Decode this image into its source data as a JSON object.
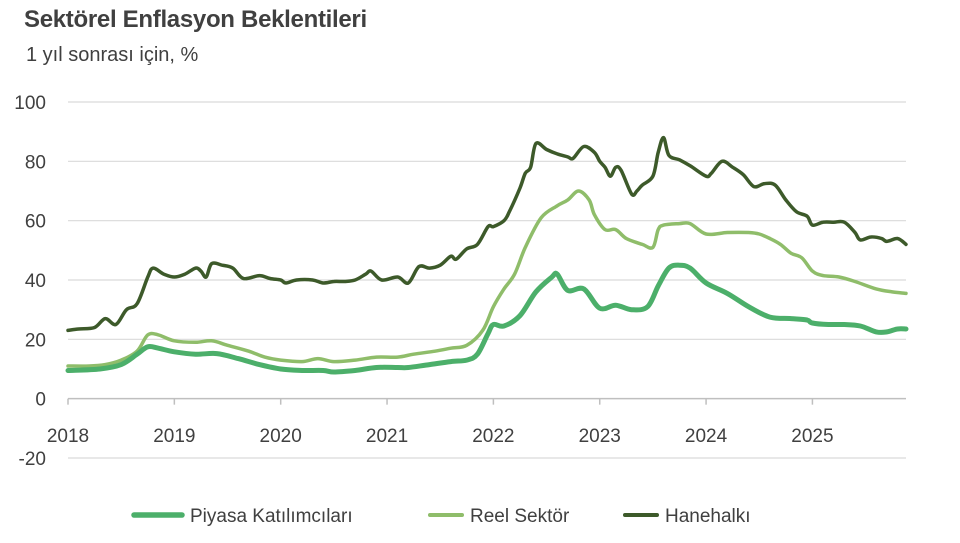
{
  "chart_data": {
    "type": "line",
    "title": "Sektörel Enflasyon Beklentileri",
    "subtitle": "1 yıl sonrası için, %",
    "xlabel": "",
    "ylabel": "",
    "xlim": [
      2018,
      2025.88
    ],
    "ylim": [
      -20,
      100
    ],
    "y_ticks": [
      -20,
      0,
      20,
      40,
      60,
      80,
      100
    ],
    "y_tick_labels": [
      "-20",
      "0",
      "20",
      "40",
      "60",
      "80",
      "100"
    ],
    "x_ticks": [
      2018,
      2019,
      2020,
      2021,
      2022,
      2023,
      2024,
      2025
    ],
    "x_tick_labels": [
      "2018",
      "2019",
      "2020",
      "2021",
      "2022",
      "2023",
      "2024",
      "2025"
    ],
    "grid": true,
    "legend_position": "bottom",
    "series": [
      {
        "name": "Piyasa Katılımcıları",
        "color": "#4caf6a",
        "width": 5,
        "points": [
          [
            2018.0,
            9.5
          ],
          [
            2018.3,
            10
          ],
          [
            2018.5,
            11.5
          ],
          [
            2018.65,
            15
          ],
          [
            2018.75,
            17.5
          ],
          [
            2018.85,
            17
          ],
          [
            2019.0,
            15.8
          ],
          [
            2019.2,
            15
          ],
          [
            2019.4,
            15.2
          ],
          [
            2019.6,
            13.5
          ],
          [
            2019.8,
            11.5
          ],
          [
            2020.0,
            10
          ],
          [
            2020.2,
            9.5
          ],
          [
            2020.4,
            9.5
          ],
          [
            2020.5,
            9
          ],
          [
            2020.7,
            9.5
          ],
          [
            2020.9,
            10.5
          ],
          [
            2021.1,
            10.5
          ],
          [
            2021.2,
            10.5
          ],
          [
            2021.4,
            11.5
          ],
          [
            2021.6,
            12.5
          ],
          [
            2021.75,
            13
          ],
          [
            2021.85,
            15
          ],
          [
            2021.95,
            22
          ],
          [
            2022.0,
            25
          ],
          [
            2022.1,
            24.5
          ],
          [
            2022.25,
            28
          ],
          [
            2022.4,
            36
          ],
          [
            2022.55,
            41
          ],
          [
            2022.6,
            42
          ],
          [
            2022.7,
            36.5
          ],
          [
            2022.85,
            37
          ],
          [
            2023.0,
            30.5
          ],
          [
            2023.15,
            31.5
          ],
          [
            2023.3,
            30
          ],
          [
            2023.45,
            31
          ],
          [
            2023.55,
            38
          ],
          [
            2023.65,
            44
          ],
          [
            2023.75,
            45
          ],
          [
            2023.85,
            44
          ],
          [
            2024.0,
            39
          ],
          [
            2024.2,
            35.5
          ],
          [
            2024.4,
            31
          ],
          [
            2024.6,
            27.5
          ],
          [
            2024.8,
            27
          ],
          [
            2024.95,
            26.5
          ],
          [
            2025.0,
            25.5
          ],
          [
            2025.15,
            25
          ],
          [
            2025.3,
            25
          ],
          [
            2025.45,
            24.5
          ],
          [
            2025.6,
            22.5
          ],
          [
            2025.7,
            22.5
          ],
          [
            2025.8,
            23.5
          ],
          [
            2025.88,
            23.5
          ]
        ]
      },
      {
        "name": "Reel Sektör",
        "color": "#8fbd6a",
        "width": 3.5,
        "points": [
          [
            2018.0,
            11
          ],
          [
            2018.2,
            11
          ],
          [
            2018.35,
            11.5
          ],
          [
            2018.5,
            13
          ],
          [
            2018.65,
            16
          ],
          [
            2018.75,
            21.5
          ],
          [
            2018.85,
            21.5
          ],
          [
            2019.0,
            19.5
          ],
          [
            2019.2,
            19
          ],
          [
            2019.35,
            19.5
          ],
          [
            2019.5,
            18
          ],
          [
            2019.7,
            16
          ],
          [
            2019.85,
            14
          ],
          [
            2020.0,
            13
          ],
          [
            2020.2,
            12.5
          ],
          [
            2020.35,
            13.5
          ],
          [
            2020.5,
            12.5
          ],
          [
            2020.7,
            13
          ],
          [
            2020.9,
            14
          ],
          [
            2021.1,
            14
          ],
          [
            2021.25,
            15
          ],
          [
            2021.45,
            16
          ],
          [
            2021.6,
            17
          ],
          [
            2021.75,
            18
          ],
          [
            2021.9,
            23
          ],
          [
            2022.0,
            31
          ],
          [
            2022.1,
            37
          ],
          [
            2022.2,
            42
          ],
          [
            2022.3,
            51
          ],
          [
            2022.45,
            61
          ],
          [
            2022.6,
            65
          ],
          [
            2022.7,
            67
          ],
          [
            2022.8,
            70
          ],
          [
            2022.9,
            67
          ],
          [
            2022.95,
            62
          ],
          [
            2023.05,
            57
          ],
          [
            2023.15,
            57
          ],
          [
            2023.25,
            54
          ],
          [
            2023.4,
            52
          ],
          [
            2023.5,
            51
          ],
          [
            2023.55,
            57
          ],
          [
            2023.6,
            58.5
          ],
          [
            2023.75,
            59
          ],
          [
            2023.85,
            59
          ],
          [
            2024.0,
            55.5
          ],
          [
            2024.2,
            56
          ],
          [
            2024.4,
            56
          ],
          [
            2024.5,
            55.5
          ],
          [
            2024.6,
            54
          ],
          [
            2024.7,
            52
          ],
          [
            2024.8,
            49
          ],
          [
            2024.9,
            47.5
          ],
          [
            2025.0,
            43
          ],
          [
            2025.1,
            41.5
          ],
          [
            2025.25,
            41
          ],
          [
            2025.4,
            39.5
          ],
          [
            2025.6,
            37
          ],
          [
            2025.75,
            36
          ],
          [
            2025.88,
            35.5
          ]
        ]
      },
      {
        "name": "Hanehalkı",
        "color": "#3d5a2a",
        "width": 3.5,
        "points": [
          [
            2018.0,
            23
          ],
          [
            2018.1,
            23.5
          ],
          [
            2018.25,
            24
          ],
          [
            2018.35,
            27
          ],
          [
            2018.45,
            25
          ],
          [
            2018.55,
            30
          ],
          [
            2018.65,
            32
          ],
          [
            2018.75,
            41
          ],
          [
            2018.8,
            44
          ],
          [
            2018.9,
            42
          ],
          [
            2019.0,
            41
          ],
          [
            2019.1,
            42
          ],
          [
            2019.2,
            44
          ],
          [
            2019.25,
            43
          ],
          [
            2019.3,
            41
          ],
          [
            2019.35,
            45.5
          ],
          [
            2019.45,
            45
          ],
          [
            2019.55,
            44
          ],
          [
            2019.65,
            40.5
          ],
          [
            2019.8,
            41.5
          ],
          [
            2019.9,
            40.5
          ],
          [
            2020.0,
            40
          ],
          [
            2020.05,
            39
          ],
          [
            2020.15,
            40
          ],
          [
            2020.3,
            40
          ],
          [
            2020.4,
            39
          ],
          [
            2020.5,
            39.5
          ],
          [
            2020.6,
            39.5
          ],
          [
            2020.7,
            40
          ],
          [
            2020.8,
            42
          ],
          [
            2020.85,
            43
          ],
          [
            2020.95,
            40
          ],
          [
            2021.1,
            41
          ],
          [
            2021.2,
            39
          ],
          [
            2021.3,
            44.5
          ],
          [
            2021.4,
            44
          ],
          [
            2021.5,
            45
          ],
          [
            2021.6,
            48
          ],
          [
            2021.65,
            47
          ],
          [
            2021.75,
            50.5
          ],
          [
            2021.85,
            52
          ],
          [
            2021.95,
            58
          ],
          [
            2022.0,
            58
          ],
          [
            2022.1,
            60
          ],
          [
            2022.15,
            63
          ],
          [
            2022.25,
            71
          ],
          [
            2022.3,
            76
          ],
          [
            2022.35,
            78
          ],
          [
            2022.4,
            86
          ],
          [
            2022.5,
            84
          ],
          [
            2022.6,
            82.5
          ],
          [
            2022.7,
            81.5
          ],
          [
            2022.75,
            81
          ],
          [
            2022.85,
            85
          ],
          [
            2022.95,
            83
          ],
          [
            2023.0,
            80
          ],
          [
            2023.05,
            78
          ],
          [
            2023.1,
            75
          ],
          [
            2023.15,
            78
          ],
          [
            2023.2,
            77
          ],
          [
            2023.3,
            69
          ],
          [
            2023.35,
            70
          ],
          [
            2023.4,
            72
          ],
          [
            2023.5,
            75
          ],
          [
            2023.55,
            83
          ],
          [
            2023.6,
            88
          ],
          [
            2023.65,
            82
          ],
          [
            2023.75,
            80.5
          ],
          [
            2023.85,
            78.5
          ],
          [
            2024.0,
            75
          ],
          [
            2024.05,
            76
          ],
          [
            2024.15,
            80
          ],
          [
            2024.25,
            78
          ],
          [
            2024.35,
            75.5
          ],
          [
            2024.45,
            71.5
          ],
          [
            2024.55,
            72.5
          ],
          [
            2024.65,
            72
          ],
          [
            2024.75,
            67
          ],
          [
            2024.85,
            63
          ],
          [
            2024.95,
            61.5
          ],
          [
            2025.0,
            58.5
          ],
          [
            2025.1,
            59.5
          ],
          [
            2025.2,
            59.5
          ],
          [
            2025.3,
            59.5
          ],
          [
            2025.4,
            56
          ],
          [
            2025.45,
            53.5
          ],
          [
            2025.55,
            54.5
          ],
          [
            2025.65,
            54
          ],
          [
            2025.7,
            53
          ],
          [
            2025.8,
            54
          ],
          [
            2025.88,
            52
          ]
        ]
      }
    ]
  }
}
